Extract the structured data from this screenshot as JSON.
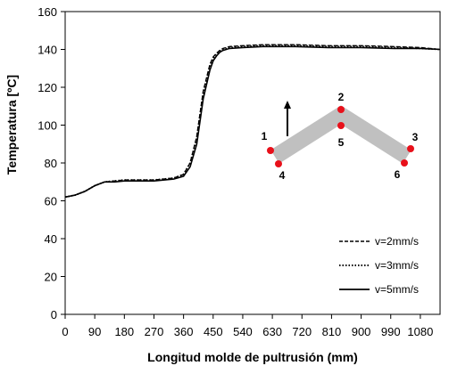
{
  "chart_data": {
    "type": "line",
    "xlabel": "Longitud molde de pultrusión (mm)",
    "ylabel": "Temperatura [ºC]",
    "xlim": [
      0,
      1140
    ],
    "ylim": [
      0,
      160
    ],
    "xticks": [
      0,
      90,
      180,
      270,
      360,
      450,
      540,
      630,
      720,
      810,
      900,
      990,
      1080
    ],
    "yticks": [
      0,
      20,
      40,
      60,
      80,
      100,
      120,
      140,
      160
    ],
    "grid": false,
    "legend_position": "bottom-right",
    "series": [
      {
        "name": "v=2mm/s",
        "style": "dashed",
        "x": [
          0,
          30,
          60,
          90,
          120,
          150,
          180,
          270,
          330,
          360,
          380,
          400,
          420,
          440,
          450,
          460,
          470,
          480,
          500,
          540,
          600,
          700,
          800,
          900,
          1000,
          1080,
          1140
        ],
        "y": [
          62,
          63,
          65,
          68,
          70,
          70.5,
          71,
          71,
          72,
          74,
          80,
          94,
          118,
          132,
          136,
          138,
          139.5,
          140.5,
          141.5,
          142,
          142.5,
          142.5,
          142,
          142,
          141.5,
          141,
          140
        ]
      },
      {
        "name": "v=3mm/s",
        "style": "dotted",
        "x": [
          0,
          30,
          60,
          90,
          120,
          150,
          180,
          270,
          330,
          360,
          380,
          400,
          420,
          440,
          450,
          460,
          470,
          480,
          500,
          540,
          600,
          700,
          800,
          900,
          1000,
          1080,
          1140
        ],
        "y": [
          62,
          63,
          65,
          68,
          70,
          70.5,
          71,
          71,
          72,
          74,
          80,
          93,
          117,
          131,
          135.5,
          137.5,
          139,
          140,
          141,
          141.5,
          142,
          142,
          141.5,
          141.5,
          141,
          140.5,
          140
        ]
      },
      {
        "name": "v=5mm/s",
        "style": "solid",
        "x": [
          0,
          30,
          60,
          90,
          120,
          150,
          180,
          270,
          330,
          360,
          380,
          400,
          420,
          440,
          450,
          460,
          470,
          480,
          500,
          540,
          600,
          700,
          800,
          900,
          1000,
          1080,
          1140
        ],
        "y": [
          62,
          63,
          65,
          68,
          70,
          70,
          70.5,
          70.5,
          71.5,
          73,
          78,
          90,
          114,
          129,
          134,
          136.5,
          138.5,
          139.5,
          140.5,
          141,
          141.5,
          141.5,
          141,
          141,
          140.5,
          140.5,
          140
        ]
      }
    ],
    "inset": {
      "marker_labels": [
        "1",
        "2",
        "3",
        "4",
        "5",
        "6"
      ],
      "marker_color": "#e8101a",
      "profile_color": "#c0c0c0"
    }
  }
}
